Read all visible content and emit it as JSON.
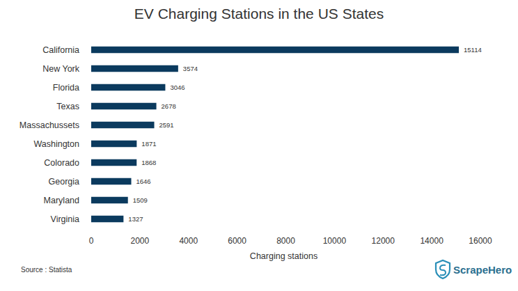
{
  "chart_data": {
    "type": "bar",
    "orientation": "horizontal",
    "title": "EV Charging Stations in the US States",
    "x_label": "Charging stations",
    "source": "Source : Statista",
    "logo": "ScrapeHero",
    "categories": [
      "California",
      "New York",
      "Florida",
      "Texas",
      "Massachussets",
      "Washington",
      "Colorado",
      "Georgia",
      "Maryland",
      "Virginia"
    ],
    "values": [
      15114,
      3574,
      3046,
      2678,
      2591,
      1871,
      1868,
      1646,
      1509,
      1327
    ],
    "color": "#0b3a5e",
    "xlim": [
      0,
      16000
    ],
    "xticks": [
      0,
      2000,
      4000,
      6000,
      8000,
      10000,
      12000,
      14000,
      16000
    ],
    "grid": false,
    "data_labels": true
  }
}
